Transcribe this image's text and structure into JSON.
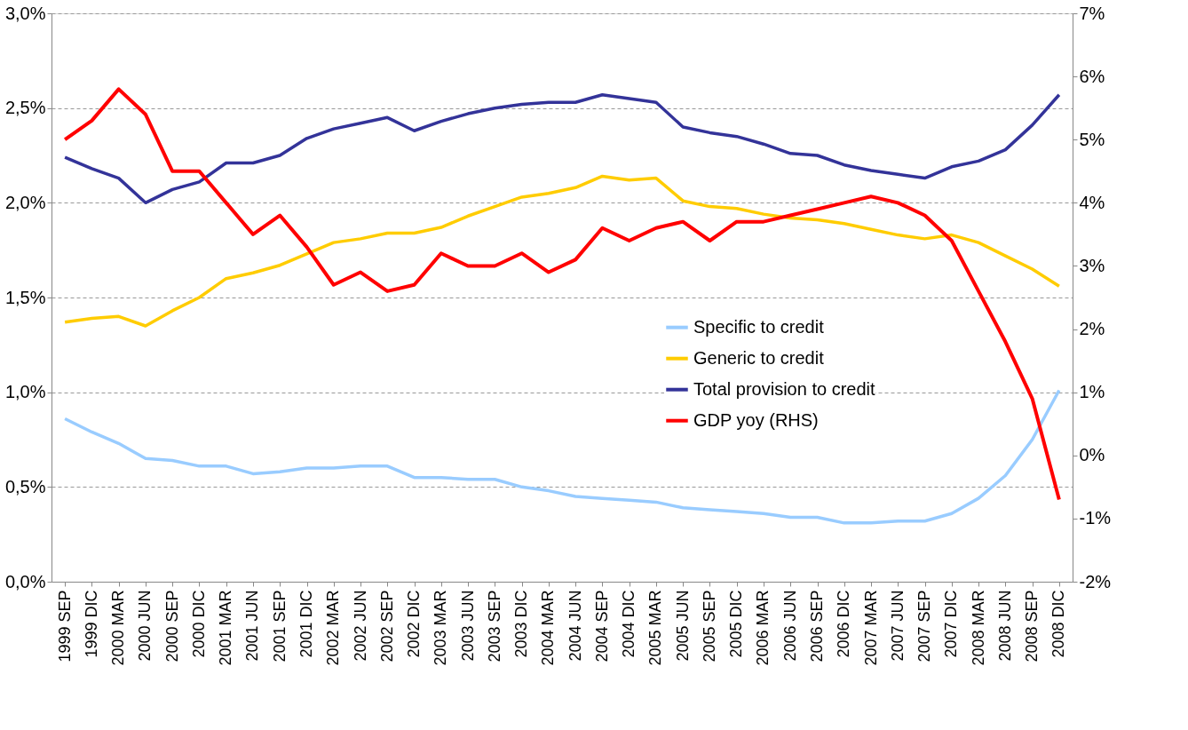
{
  "chart_data": {
    "type": "line",
    "categories": [
      "1999 SEP",
      "1999 DIC",
      "2000 MAR",
      "2000 JUN",
      "2000 SEP",
      "2000 DIC",
      "2001 MAR",
      "2001 JUN",
      "2001 SEP",
      "2001 DIC",
      "2002 MAR",
      "2002 JUN",
      "2002 SEP",
      "2002 DIC",
      "2003 MAR",
      "2003 JUN",
      "2003 SEP",
      "2003 DIC",
      "2004 MAR",
      "2004 JUN",
      "2004 SEP",
      "2004 DIC",
      "2005 MAR",
      "2005 JUN",
      "2005 SEP",
      "2005 DIC",
      "2006 MAR",
      "2006 JUN",
      "2006 SEP",
      "2006 DIC",
      "2007 MAR",
      "2007 JUN",
      "2007 SEP",
      "2007 DIC",
      "2008 MAR",
      "2008 JUN",
      "2008 SEP",
      "2008 DIC"
    ],
    "series": [
      {
        "name": "Specific to credit",
        "color": "#99ccff",
        "values": [
          0.86,
          0.79,
          0.73,
          0.65,
          0.64,
          0.61,
          0.61,
          0.57,
          0.58,
          0.6,
          0.6,
          0.61,
          0.61,
          0.55,
          0.55,
          0.54,
          0.54,
          0.5,
          0.48,
          0.45,
          0.44,
          0.43,
          0.42,
          0.39,
          0.38,
          0.37,
          0.36,
          0.34,
          0.34,
          0.31,
          0.31,
          0.32,
          0.32,
          0.36,
          0.44,
          0.56,
          0.75,
          1.01
        ]
      },
      {
        "name": "Generic to credit",
        "color": "#ffcc00",
        "values": [
          1.37,
          1.39,
          1.4,
          1.35,
          1.43,
          1.5,
          1.6,
          1.63,
          1.67,
          1.73,
          1.79,
          1.81,
          1.84,
          1.84,
          1.87,
          1.93,
          1.98,
          2.03,
          2.05,
          2.08,
          2.14,
          2.12,
          2.13,
          2.01,
          1.98,
          1.97,
          1.94,
          1.92,
          1.91,
          1.89,
          1.86,
          1.83,
          1.81,
          1.83,
          1.79,
          1.72,
          1.65,
          1.56
        ]
      },
      {
        "name": "Total provision to credit",
        "color": "#333399",
        "values": [
          2.24,
          2.18,
          2.13,
          2.0,
          2.07,
          2.11,
          2.21,
          2.21,
          2.25,
          2.34,
          2.39,
          2.42,
          2.45,
          2.38,
          2.43,
          2.47,
          2.5,
          2.52,
          2.53,
          2.53,
          2.57,
          2.55,
          2.53,
          2.4,
          2.37,
          2.35,
          2.31,
          2.26,
          2.25,
          2.2,
          2.17,
          2.15,
          2.13,
          2.19,
          2.22,
          2.28,
          2.41,
          2.57
        ]
      },
      {
        "name": "GDP yoy (RHS)",
        "color": "#ff0000",
        "axis": "y2",
        "values": [
          5.0,
          5.3,
          5.8,
          5.4,
          4.5,
          4.5,
          4.0,
          3.5,
          3.8,
          3.3,
          2.7,
          2.9,
          2.6,
          2.7,
          3.2,
          3.0,
          3.0,
          3.2,
          2.9,
          3.1,
          3.6,
          3.4,
          3.6,
          3.7,
          3.4,
          3.7,
          3.7,
          3.8,
          3.9,
          4.0,
          4.1,
          4.0,
          3.8,
          3.4,
          2.6,
          1.8,
          0.9,
          -0.7
        ]
      }
    ],
    "ylim": [
      0,
      3
    ],
    "yticks": [
      {
        "value": 0,
        "label": "0,0%"
      },
      {
        "value": 0.5,
        "label": "0,5%"
      },
      {
        "value": 1,
        "label": "1,0%"
      },
      {
        "value": 1.5,
        "label": "1,5%"
      },
      {
        "value": 2,
        "label": "2,0%"
      },
      {
        "value": 2.5,
        "label": "2,5%"
      },
      {
        "value": 3,
        "label": "3,0%"
      }
    ],
    "y2lim": [
      -2,
      7
    ],
    "y2ticks": [
      {
        "value": -2,
        "label": "-2%"
      },
      {
        "value": -1,
        "label": "-1%"
      },
      {
        "value": 0,
        "label": "0%"
      },
      {
        "value": 1,
        "label": "1%"
      },
      {
        "value": 2,
        "label": "2%"
      },
      {
        "value": 3,
        "label": "3%"
      },
      {
        "value": 4,
        "label": "4%"
      },
      {
        "value": 5,
        "label": "5%"
      },
      {
        "value": 6,
        "label": "6%"
      },
      {
        "value": 7,
        "label": "7%"
      }
    ],
    "grid": "y",
    "legend": "right",
    "marker": "none",
    "line_style": "solid"
  }
}
